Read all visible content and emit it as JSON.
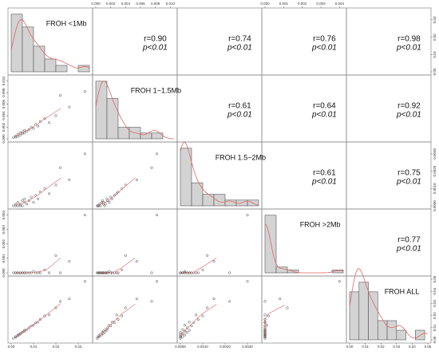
{
  "chart_data": {
    "type": "scatter_matrix",
    "point_color": "#444444",
    "smooth_color": "#e06666",
    "hist_color": "#d3d3d3",
    "variables": [
      {
        "name": "FROH <1Mb",
        "lim": [
          0,
          0.035
        ],
        "ticks": [
          {
            "value": 0,
            "label": "0.00"
          },
          {
            "value": 0.01,
            "label": "0.01"
          },
          {
            "value": 0.02,
            "label": "0.02"
          },
          {
            "value": 0.03,
            "label": "0.03"
          }
        ],
        "values": [
          0.001,
          0.002,
          0.002,
          0.003,
          0.003,
          0.004,
          0.004,
          0.005,
          0.005,
          0.006,
          0.006,
          0.007,
          0.008,
          0.009,
          0.01,
          0.011,
          0.012,
          0.013,
          0.015,
          0.017,
          0.02,
          0.022,
          0.026,
          0.033
        ],
        "histogram": {
          "bins": [
            0,
            0.005,
            0.01,
            0.015,
            0.02,
            0.025,
            0.03,
            0.035
          ],
          "counts": [
            9,
            7,
            4,
            2,
            1,
            0,
            1
          ]
        },
        "correlations": {
          "values": [
            0.9,
            0.74,
            0.76,
            0.98
          ],
          "value_labels": [
            "r=0.90",
            "r=0.74",
            "r=0.76",
            "r=0.98"
          ],
          "p_labels": [
            "p<0.01",
            "p<0.01",
            "p<0.01",
            "p<0.01"
          ]
        }
      },
      {
        "name": "FROH 1~1.5Mb",
        "lim": [
          0,
          0.0105
        ],
        "ticks": [
          {
            "value": 0,
            "label": "0.000"
          },
          {
            "value": 0.002,
            "label": "0.002"
          },
          {
            "value": 0.004,
            "label": "0.004"
          },
          {
            "value": 0.006,
            "label": "0.006"
          },
          {
            "value": 0.008,
            "label": "0.008"
          },
          {
            "value": 0.01,
            "label": "0.010"
          }
        ],
        "values": [
          0.0002,
          0.0003,
          0.0005,
          0.0004,
          0.0008,
          0.0006,
          0.001,
          0.0009,
          0.0012,
          0.001,
          0.0015,
          0.0013,
          0.0016,
          0.002,
          0.0018,
          0.0025,
          0.0022,
          0.003,
          0.0035,
          0.0028,
          0.004,
          0.0075,
          0.0055,
          0.0082
        ],
        "histogram": {
          "bins": [
            0,
            0.0015,
            0.003,
            0.0045,
            0.006,
            0.0075,
            0.009
          ],
          "counts": [
            10,
            7,
            2,
            2,
            1,
            1
          ]
        },
        "correlations": {
          "values": [
            0.61,
            0.64,
            0.92
          ],
          "value_labels": [
            "r=0.61",
            "r=0.64",
            "r=0.92"
          ],
          "p_labels": [
            "p<0.01",
            "p<0.01",
            "p<0.01"
          ]
        }
      },
      {
        "name": "FROH 1.5~2Mb",
        "lim": [
          0,
          0.0035
        ],
        "ticks": [
          {
            "value": 0,
            "label": "0.0000"
          },
          {
            "value": 0.001,
            "label": "0.0010"
          },
          {
            "value": 0.002,
            "label": "0.0020"
          },
          {
            "value": 0.003,
            "label": "0.0030"
          }
        ],
        "values": [
          0,
          0,
          0.0001,
          0,
          0.0002,
          0,
          0.0001,
          0.0003,
          0,
          0.0002,
          0.0004,
          0.0001,
          0.0003,
          0.0005,
          0.0002,
          0.0006,
          0.0004,
          0.0008,
          0.001,
          0.0007,
          0.0012,
          0.0022,
          0.0015,
          0.003
        ],
        "histogram": {
          "bins": [
            0,
            0.0005,
            0.001,
            0.0015,
            0.002,
            0.0025,
            0.003,
            0.0035
          ],
          "counts": [
            10,
            4,
            2,
            2,
            1,
            1,
            1
          ]
        },
        "correlations": {
          "values": [
            0.61,
            0.75
          ],
          "value_labels": [
            "r=0.61",
            "r=0.75"
          ],
          "p_labels": [
            "p<0.01",
            "p<0.01"
          ]
        }
      },
      {
        "name": "FROH >2Mb",
        "lim": [
          0,
          0.0042
        ],
        "ticks": [
          {
            "value": 0,
            "label": "0.000"
          },
          {
            "value": 0.001,
            "label": "0.001"
          },
          {
            "value": 0.002,
            "label": "0.002"
          },
          {
            "value": 0.003,
            "label": "0.003"
          },
          {
            "value": 0.004,
            "label": "0.004"
          }
        ],
        "values": [
          0,
          0,
          0,
          0,
          0,
          0,
          0,
          0,
          0,
          0,
          0,
          0,
          0,
          0,
          0.0001,
          0,
          0,
          0,
          0.0002,
          0,
          0.0012,
          0,
          0.0008,
          0.004
        ],
        "histogram": {
          "bins": [
            0,
            0.0006,
            0.0012,
            0.0018,
            0.0024,
            0.003,
            0.0036,
            0.0042
          ],
          "counts": [
            20,
            2,
            1,
            0,
            0,
            0,
            1
          ]
        },
        "correlations": {
          "values": [
            0.77
          ],
          "value_labels": [
            "r=0.77"
          ],
          "p_labels": [
            "p<0.01"
          ]
        }
      },
      {
        "name": "FROH ALL",
        "lim": [
          0,
          0.05
        ],
        "ticks": [
          {
            "value": 0,
            "label": "0.00"
          },
          {
            "value": 0.01,
            "label": "0.01"
          },
          {
            "value": 0.02,
            "label": "0.02"
          },
          {
            "value": 0.03,
            "label": "0.03"
          },
          {
            "value": 0.04,
            "label": "0.04"
          },
          {
            "value": 0.05,
            "label": "0.05"
          }
        ],
        "values": [
          0.0012,
          0.0023,
          0.0026,
          0.0034,
          0.004,
          0.0046,
          0.0051,
          0.0062,
          0.0062,
          0.0072,
          0.0079,
          0.0084,
          0.0099,
          0.0115,
          0.0121,
          0.0141,
          0.0146,
          0.0168,
          0.0197,
          0.0205,
          0.0264,
          0.0317,
          0.0338,
          0.0482
        ],
        "histogram": {
          "bins": [
            0,
            0.006,
            0.012,
            0.018,
            0.024,
            0.03,
            0.036,
            0.042,
            0.048
          ],
          "counts": [
            5,
            6,
            5,
            2,
            2,
            1,
            0,
            1
          ]
        },
        "correlations": {
          "values": [],
          "value_labels": [],
          "p_labels": []
        }
      }
    ]
  }
}
